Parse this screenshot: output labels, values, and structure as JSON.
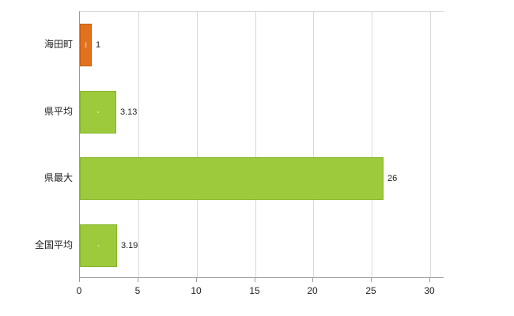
{
  "chart_data": {
    "type": "bar",
    "orientation": "horizontal",
    "title": "",
    "xlabel": "",
    "ylabel": "",
    "categories": [
      "海田町",
      "県平均",
      "県最大",
      "全国平均"
    ],
    "values": [
      1,
      3.13,
      26,
      3.19
    ],
    "value_labels": [
      "1",
      "3.13",
      "26",
      "3.19"
    ],
    "xticks": [
      0,
      5,
      10,
      15,
      20,
      25,
      30
    ],
    "xtick_labels": [
      "0",
      "5",
      "10",
      "15",
      "20",
      "25",
      "30"
    ],
    "xlim": [
      0,
      31.2
    ],
    "grid": true,
    "legend": "none",
    "colors": {
      "bar_default": "#9cca3c",
      "bar_default_border": "#85b42a",
      "bar_highlight": "#e2711d",
      "bar_highlight_border": "#c05f12",
      "highlight_index": 0,
      "gridline": "#d9d9d9",
      "axis": "#9a9a9a",
      "text": "#222222",
      "background": "#ffffff"
    }
  }
}
